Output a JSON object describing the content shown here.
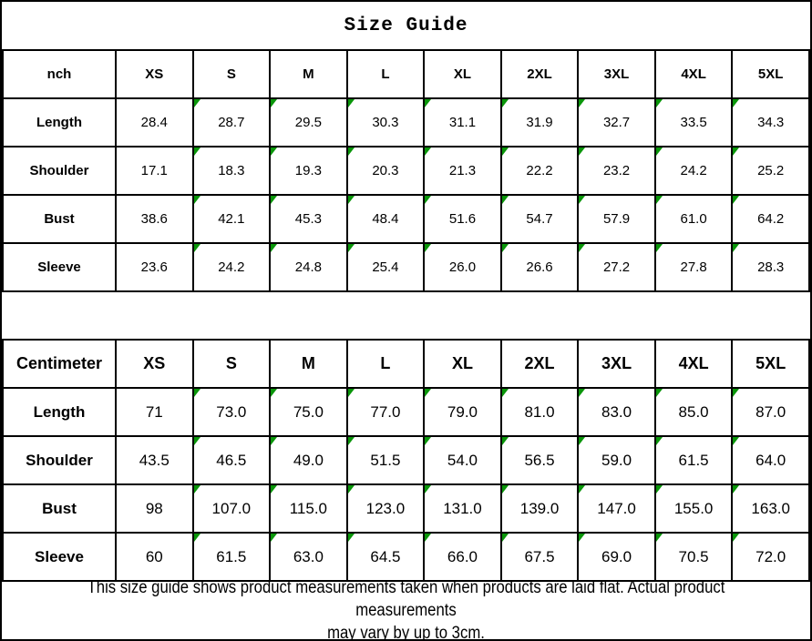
{
  "title": "Size Guide",
  "colors": {
    "flag_green": "#0a960a",
    "border": "#000000",
    "background": "#ffffff",
    "text": "#000000"
  },
  "inch_table": {
    "unit_label": "nch",
    "sizes": [
      "XS",
      "S",
      "M",
      "L",
      "XL",
      "2XL",
      "3XL",
      "4XL",
      "5XL"
    ],
    "rows": [
      {
        "label": "Length",
        "values": [
          "28.4",
          "28.7",
          "29.5",
          "30.3",
          "31.1",
          "31.9",
          "32.7",
          "33.5",
          "34.3"
        ]
      },
      {
        "label": "Shoulder",
        "values": [
          "17.1",
          "18.3",
          "19.3",
          "20.3",
          "21.3",
          "22.2",
          "23.2",
          "24.2",
          "25.2"
        ]
      },
      {
        "label": "Bust",
        "values": [
          "38.6",
          "42.1",
          "45.3",
          "48.4",
          "51.6",
          "54.7",
          "57.9",
          "61.0",
          "64.2"
        ]
      },
      {
        "label": "Sleeve",
        "values": [
          "23.6",
          "24.2",
          "24.8",
          "25.4",
          "26.0",
          "26.6",
          "27.2",
          "27.8",
          "28.3"
        ]
      }
    ]
  },
  "cm_table": {
    "unit_label": "Centimeter",
    "sizes": [
      "XS",
      "S",
      "M",
      "L",
      "XL",
      "2XL",
      "3XL",
      "4XL",
      "5XL"
    ],
    "rows": [
      {
        "label": "Length",
        "values": [
          "71",
          "73.0",
          "75.0",
          "77.0",
          "79.0",
          "81.0",
          "83.0",
          "85.0",
          "87.0"
        ]
      },
      {
        "label": "Shoulder",
        "values": [
          "43.5",
          "46.5",
          "49.0",
          "51.5",
          "54.0",
          "56.5",
          "59.0",
          "61.5",
          "64.0"
        ]
      },
      {
        "label": "Bust",
        "values": [
          "98",
          "107.0",
          "115.0",
          "123.0",
          "131.0",
          "139.0",
          "147.0",
          "155.0",
          "163.0"
        ]
      },
      {
        "label": "Sleeve",
        "values": [
          "60",
          "61.5",
          "63.0",
          "64.5",
          "66.0",
          "67.5",
          "69.0",
          "70.5",
          "72.0"
        ]
      }
    ]
  },
  "footer_note": "This size guide shows product measurements taken when products are laid flat. Actual product measurements\nmay vary by up to 3cm.",
  "chart_data": [
    {
      "type": "table",
      "title": "Size Guide",
      "unit": "nch (inches)",
      "columns": [
        "nch",
        "XS",
        "S",
        "M",
        "L",
        "XL",
        "2XL",
        "3XL",
        "4XL",
        "5XL"
      ],
      "rows": [
        [
          "Length",
          28.4,
          28.7,
          29.5,
          30.3,
          31.1,
          31.9,
          32.7,
          33.5,
          34.3
        ],
        [
          "Shoulder",
          17.1,
          18.3,
          19.3,
          20.3,
          21.3,
          22.2,
          23.2,
          24.2,
          25.2
        ],
        [
          "Bust",
          38.6,
          42.1,
          45.3,
          48.4,
          51.6,
          54.7,
          57.9,
          61.0,
          64.2
        ],
        [
          "Sleeve",
          23.6,
          24.2,
          24.8,
          25.4,
          26.0,
          26.6,
          27.2,
          27.8,
          28.3
        ]
      ]
    },
    {
      "type": "table",
      "title": "Size Guide",
      "unit": "Centimeter",
      "columns": [
        "Centimeter",
        "XS",
        "S",
        "M",
        "L",
        "XL",
        "2XL",
        "3XL",
        "4XL",
        "5XL"
      ],
      "rows": [
        [
          "Length",
          71,
          73.0,
          75.0,
          77.0,
          79.0,
          81.0,
          83.0,
          85.0,
          87.0
        ],
        [
          "Shoulder",
          43.5,
          46.5,
          49.0,
          51.5,
          54.0,
          56.5,
          59.0,
          61.5,
          64.0
        ],
        [
          "Bust",
          98,
          107.0,
          115.0,
          123.0,
          131.0,
          139.0,
          147.0,
          155.0,
          163.0
        ],
        [
          "Sleeve",
          60,
          61.5,
          63.0,
          64.5,
          66.0,
          67.5,
          69.0,
          70.5,
          72.0
        ]
      ],
      "note": "This size guide shows product measurements taken when products are laid flat. Actual product measurements may vary by up to 3cm."
    }
  ]
}
